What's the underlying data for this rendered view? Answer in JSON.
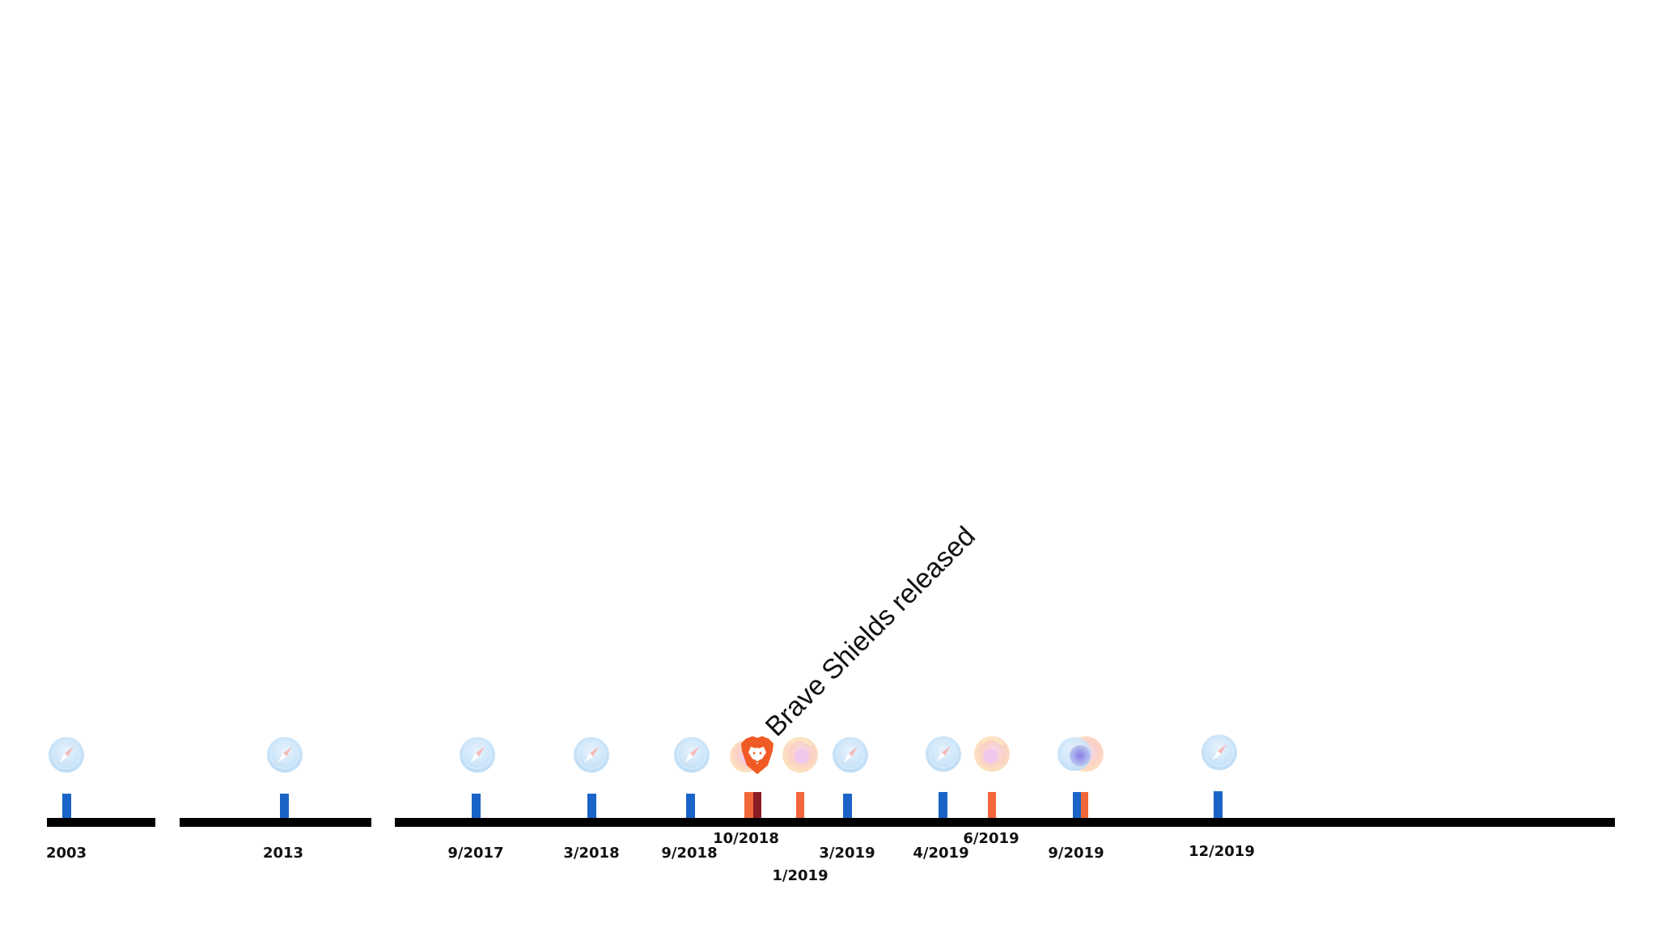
{
  "annotation": {
    "text": "Brave Shields released",
    "date": "10/2018"
  },
  "icon_names": {
    "safari": "safari-compass-icon",
    "firefox": "firefox-icon",
    "brave": "brave-lion-icon",
    "chrome": "chrome-icon"
  },
  "colors": {
    "axis": "#000000",
    "safari_marker": "#1a64c8",
    "firefox_marker": "#f2673a",
    "brave_marker_dark": "#8b1d24",
    "brave_orange": "#f05a24",
    "label": "#111111"
  },
  "timeline": {
    "segments": [
      {
        "name": "early-period",
        "from": "2003",
        "to": "2003"
      },
      {
        "name": "mid-period",
        "from": "2013",
        "to": "2013"
      },
      {
        "name": "recent-period",
        "from": "9/2017",
        "to": "12/2019"
      }
    ],
    "events": [
      {
        "date": "2003",
        "browser": "safari",
        "label_row": "primary"
      },
      {
        "date": "2013",
        "browser": "safari",
        "label_row": "primary"
      },
      {
        "date": "9/2017",
        "browser": "safari",
        "label_row": "primary"
      },
      {
        "date": "3/2018",
        "browser": "safari",
        "label_row": "primary"
      },
      {
        "date": "9/2018",
        "browser": "safari",
        "label_row": "primary"
      },
      {
        "date": "10/2018",
        "browser": "brave",
        "label_row": "raised"
      },
      {
        "date": "1/2019",
        "browser": "firefox",
        "label_row": "lowered"
      },
      {
        "date": "3/2019",
        "browser": "safari",
        "label_row": "primary"
      },
      {
        "date": "4/2019",
        "browser": "safari",
        "label_row": "primary"
      },
      {
        "date": "6/2019",
        "browser": "firefox",
        "label_row": "raised"
      },
      {
        "date": "9/2019",
        "browser": "safari-and-firefox",
        "label_row": "primary"
      },
      {
        "date": "12/2019",
        "browser": "safari",
        "label_row": "primary"
      }
    ]
  }
}
